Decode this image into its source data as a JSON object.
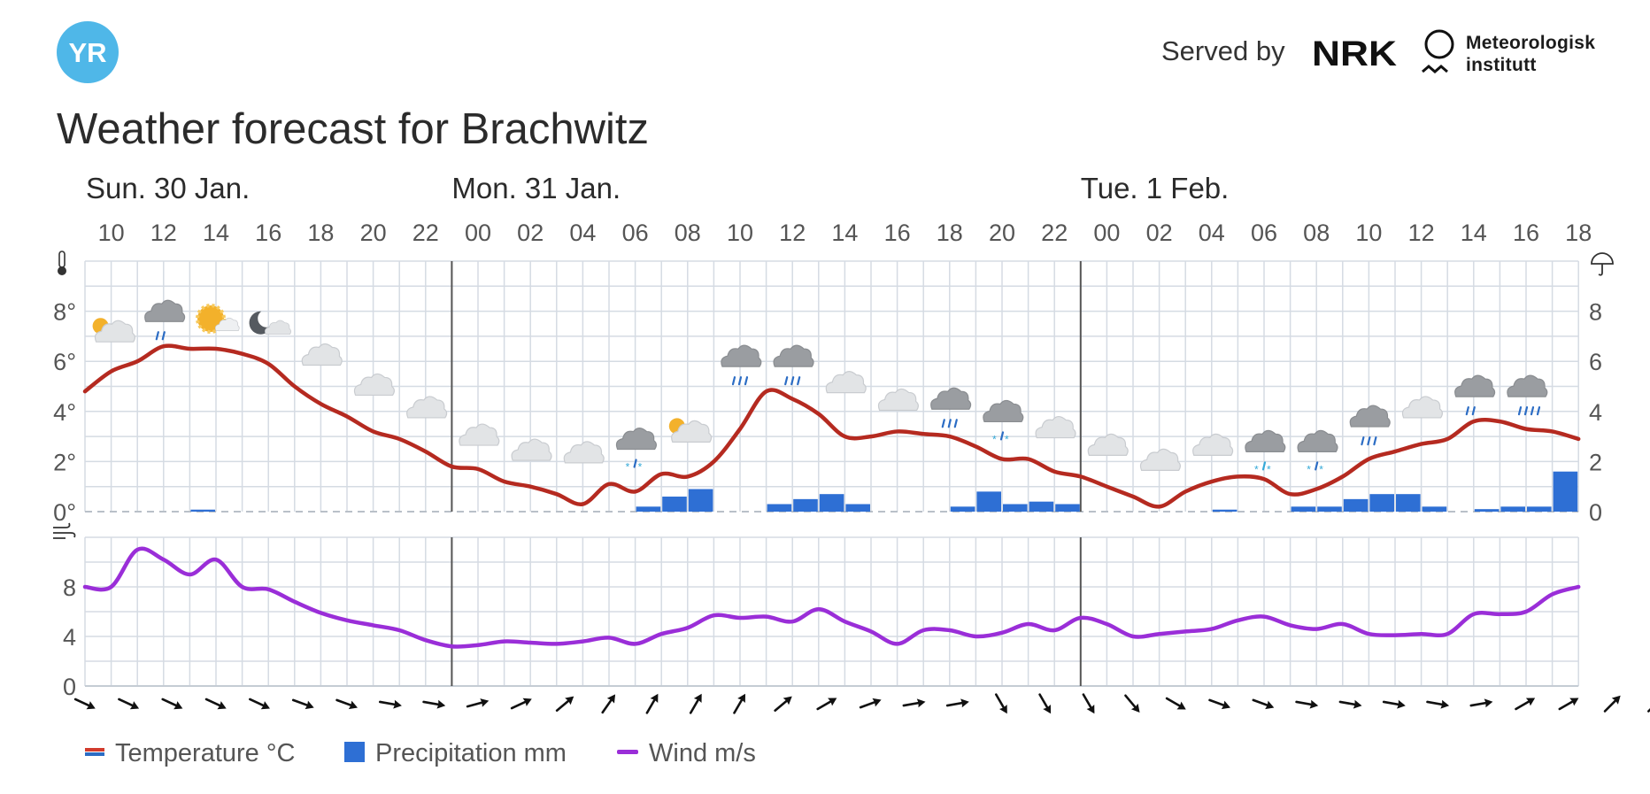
{
  "header": {
    "logo_text": "YR",
    "served_by": "Served by",
    "partner1_text": "NRK",
    "partner2_line1": "Meteorologisk",
    "partner2_line2": "institutt",
    "title": "Weather forecast for Brachwitz"
  },
  "colors": {
    "temperature": "#b52a20",
    "precipitation": "#2e6fd4",
    "wind": "#9a2ed8",
    "grid": "#d5dbe3",
    "logo": "#4fb7e8"
  },
  "chart_data": {
    "type": "line",
    "days": [
      {
        "label": "Sun. 30 Jan.",
        "start_index": 0
      },
      {
        "label": "Mon. 31 Jan.",
        "start_index": 7
      },
      {
        "label": "Tue. 1 Feb.",
        "start_index": 19
      }
    ],
    "hour_labels": [
      "10",
      "12",
      "14",
      "16",
      "18",
      "20",
      "22",
      "00",
      "02",
      "04",
      "06",
      "08",
      "10",
      "12",
      "14",
      "16",
      "18",
      "20",
      "22",
      "00",
      "02",
      "04",
      "06",
      "08",
      "10",
      "12",
      "14",
      "16",
      "18"
    ],
    "x_hours": [
      9,
      10,
      11,
      12,
      13,
      14,
      15,
      16,
      17,
      18,
      19,
      20,
      21,
      22,
      23,
      24,
      25,
      26,
      27,
      28,
      29,
      30,
      31,
      32,
      33,
      34,
      35,
      36,
      37,
      38,
      39,
      40,
      41,
      42,
      43,
      44,
      45,
      46,
      47,
      48,
      49,
      50,
      51,
      52,
      53,
      54,
      55,
      56,
      57,
      58,
      59,
      60,
      61,
      62,
      63,
      64,
      65,
      66
    ],
    "temperature": {
      "name": "Temperature °C",
      "ylim": [
        0,
        10
      ],
      "y_ticks": [
        "0°",
        "2°",
        "4°",
        "6°",
        "8°"
      ],
      "values": [
        4.8,
        5.6,
        6.0,
        6.6,
        6.5,
        6.5,
        6.3,
        5.9,
        5.0,
        4.3,
        3.8,
        3.2,
        2.9,
        2.4,
        1.8,
        1.7,
        1.2,
        1.0,
        0.7,
        0.3,
        1.1,
        0.8,
        1.5,
        1.4,
        2.0,
        3.3,
        4.8,
        4.5,
        3.9,
        3.0,
        3.0,
        3.2,
        3.1,
        3.0,
        2.6,
        2.1,
        2.1,
        1.6,
        1.4,
        1.0,
        0.6,
        0.2,
        0.8,
        1.2,
        1.4,
        1.3,
        0.7,
        0.9,
        1.4,
        2.1,
        2.4,
        2.7,
        2.9,
        3.6,
        3.6,
        3.3,
        3.2,
        2.9
      ]
    },
    "precipitation": {
      "name": "Precipitation mm",
      "ylim": [
        0,
        10
      ],
      "y_ticks": [
        "0",
        "2",
        "4",
        "6",
        "8"
      ],
      "values": [
        0,
        0,
        0,
        0,
        0.08,
        0,
        0,
        0,
        0,
        0,
        0,
        0,
        0,
        0,
        0,
        0,
        0,
        0,
        0,
        0,
        0,
        0.2,
        0.6,
        0.9,
        0,
        0,
        0.3,
        0.5,
        0.7,
        0.3,
        0,
        0,
        0,
        0.2,
        0.8,
        0.3,
        0.4,
        0.3,
        0,
        0,
        0,
        0,
        0,
        0.08,
        0,
        0,
        0.2,
        0.2,
        0.5,
        0.7,
        0.7,
        0.2,
        0,
        0.1,
        0.2,
        0.2,
        1.6,
        0
      ]
    },
    "wind": {
      "name": "Wind m/s",
      "ylim": [
        0,
        12
      ],
      "y_ticks": [
        "0",
        "4",
        "8"
      ],
      "values": [
        8.0,
        8.0,
        11.0,
        10.2,
        9.0,
        10.2,
        8.0,
        7.8,
        6.8,
        5.9,
        5.3,
        4.9,
        4.5,
        3.7,
        3.2,
        3.3,
        3.6,
        3.5,
        3.4,
        3.6,
        3.9,
        3.4,
        4.2,
        4.7,
        5.7,
        5.5,
        5.6,
        5.2,
        6.2,
        5.2,
        4.4,
        3.4,
        4.5,
        4.5,
        4.0,
        4.3,
        5.0,
        4.5,
        5.5,
        5.0,
        4.0,
        4.2,
        4.4,
        4.6,
        5.3,
        5.6,
        4.9,
        4.6,
        5.0,
        4.2,
        4.1,
        4.2,
        4.2,
        5.8,
        5.8,
        6.0,
        7.4,
        8.0
      ],
      "directions_deg": [
        115,
        115,
        115,
        115,
        115,
        110,
        110,
        100,
        100,
        75,
        65,
        50,
        35,
        30,
        30,
        30,
        50,
        60,
        70,
        80,
        80,
        150,
        150,
        150,
        140,
        120,
        110,
        110,
        100,
        100,
        100,
        100,
        80,
        60,
        60,
        45,
        45,
        45,
        45,
        45
      ]
    },
    "symbols": [
      {
        "i": 1,
        "type": "partly-sunny"
      },
      {
        "i": 3,
        "type": "cloud-light-rain"
      },
      {
        "i": 5,
        "type": "sun-cloud"
      },
      {
        "i": 7,
        "type": "moon-cloud"
      },
      {
        "i": 9,
        "type": "cloud"
      },
      {
        "i": 11,
        "type": "cloud"
      },
      {
        "i": 13,
        "type": "cloud"
      },
      {
        "i": 15,
        "type": "cloud"
      },
      {
        "i": 17,
        "type": "cloud"
      },
      {
        "i": 19,
        "type": "cloud"
      },
      {
        "i": 21,
        "type": "cloud-sleet"
      },
      {
        "i": 23,
        "type": "partly-sunny"
      },
      {
        "i": 25,
        "type": "cloud-rain"
      },
      {
        "i": 27,
        "type": "cloud-rain"
      },
      {
        "i": 29,
        "type": "cloud"
      },
      {
        "i": 31,
        "type": "cloud"
      },
      {
        "i": 33,
        "type": "cloud-rain"
      },
      {
        "i": 35,
        "type": "cloud-sleet"
      },
      {
        "i": 37,
        "type": "cloud"
      },
      {
        "i": 39,
        "type": "cloud"
      },
      {
        "i": 41,
        "type": "cloud"
      },
      {
        "i": 43,
        "type": "cloud"
      },
      {
        "i": 45,
        "type": "cloud-snow"
      },
      {
        "i": 47,
        "type": "cloud-sleet"
      },
      {
        "i": 49,
        "type": "cloud-rain"
      },
      {
        "i": 51,
        "type": "cloud"
      },
      {
        "i": 53,
        "type": "cloud-light-rain"
      },
      {
        "i": 55,
        "type": "cloud-heavy-rain"
      }
    ]
  },
  "legend": {
    "temperature": "Temperature °C",
    "precipitation": "Precipitation mm",
    "wind": "Wind m/s"
  }
}
